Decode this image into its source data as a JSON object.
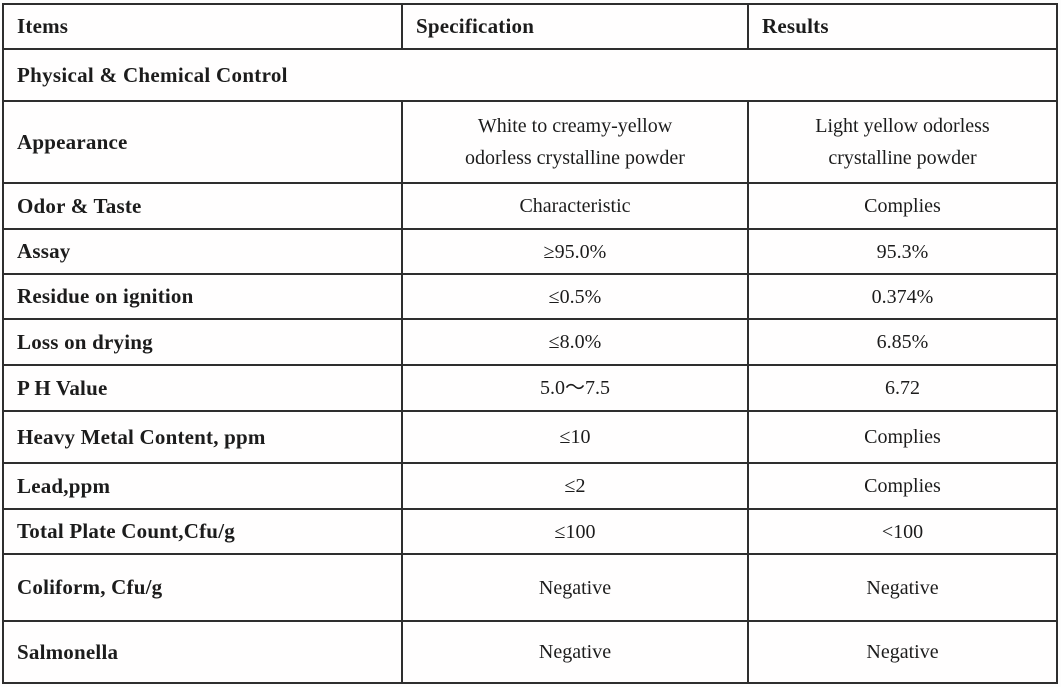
{
  "table": {
    "columns": {
      "items": "Items",
      "specification": "Specification",
      "results": "Results"
    },
    "section_header": "Physical & Chemical Control",
    "rows": [
      {
        "item": "Appearance",
        "spec": "White to creamy-yellow\nodorless crystalline powder",
        "result": "Light yellow odorless\ncrystalline powder"
      },
      {
        "item": "Odor & Taste",
        "spec": "Characteristic",
        "result": "Complies"
      },
      {
        "item": "Assay",
        "spec": "≥95.0%",
        "result": "95.3%"
      },
      {
        "item": "Residue on ignition",
        "spec": "≤0.5%",
        "result": "0.374%"
      },
      {
        "item": "Loss on drying",
        "spec": "≤8.0%",
        "result": "6.85%"
      },
      {
        "item": "P H Value",
        "spec": "5.0～7.5",
        "result": "6.72"
      },
      {
        "item": "Heavy Metal Content, ppm",
        "spec": "≤10",
        "result": "Complies"
      },
      {
        "item": "Lead,ppm",
        "spec": "≤2",
        "result": "Complies"
      },
      {
        "item": "Total Plate Count,Cfu/g",
        "spec": "≤100",
        "result": "<100"
      },
      {
        "item": "Coliform, Cfu/g",
        "spec": "Negative",
        "result": "Negative"
      },
      {
        "item": "Salmonella",
        "spec": "Negative",
        "result": "Negative"
      }
    ],
    "colors": {
      "border": "#2e2e2e",
      "text": "#1c1c1c",
      "background": "#fffefe"
    }
  }
}
